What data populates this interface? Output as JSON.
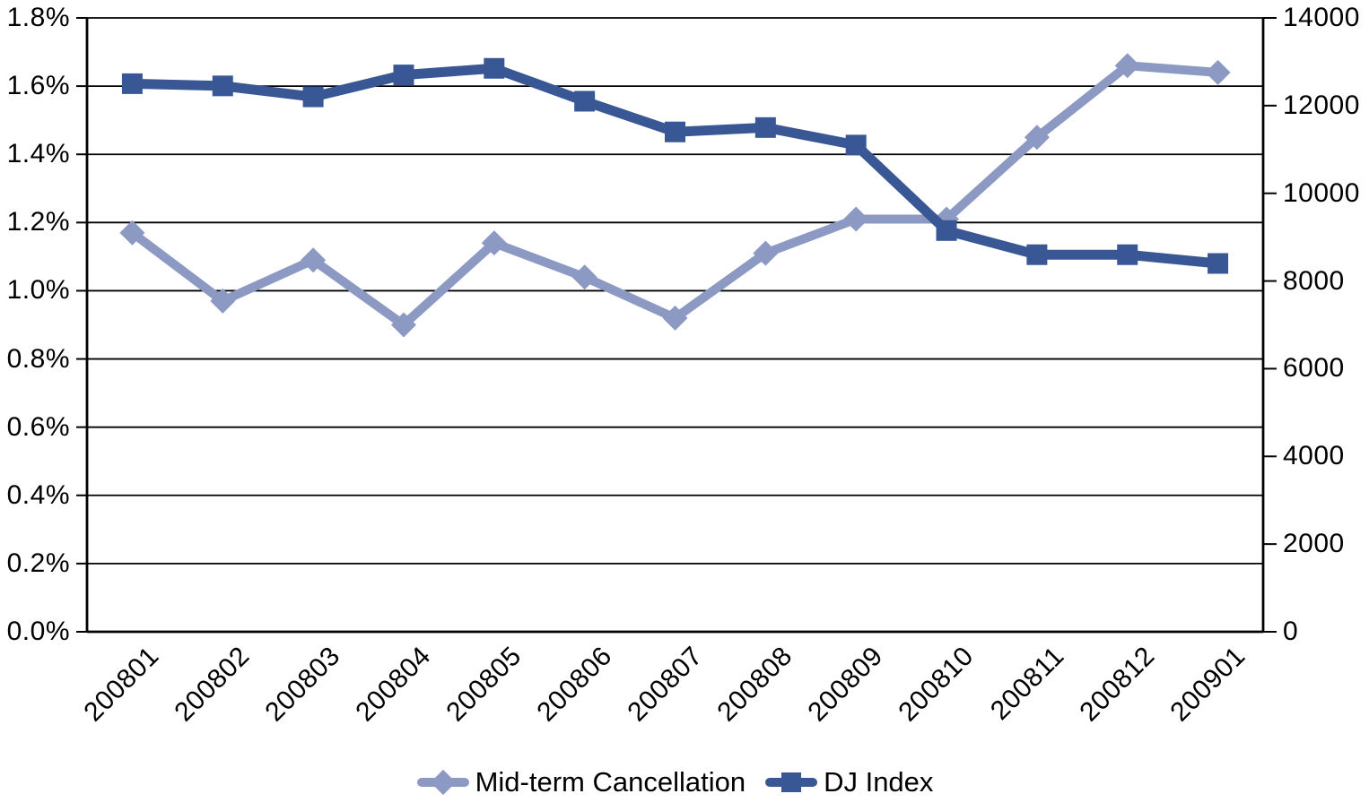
{
  "chart_data": {
    "type": "line",
    "title": "",
    "categories": [
      "200801",
      "200802",
      "200803",
      "200804",
      "200805",
      "200806",
      "200807",
      "200808",
      "200809",
      "200810",
      "200811",
      "200812",
      "200901"
    ],
    "series": [
      {
        "name": "Mid-term Cancellation",
        "axis": "left",
        "marker": "diamond",
        "color": "#8C99C3",
        "unit": "%",
        "values": [
          1.17,
          0.97,
          1.09,
          0.9,
          1.14,
          1.04,
          0.92,
          1.11,
          1.21,
          1.21,
          1.45,
          1.66,
          1.64
        ]
      },
      {
        "name": "DJ Index",
        "axis": "right",
        "marker": "square",
        "color": "#3A5795",
        "unit": "",
        "values": [
          12500,
          12450,
          12200,
          12700,
          12850,
          12100,
          11400,
          11500,
          11100,
          9150,
          8600,
          8600,
          8400
        ]
      }
    ],
    "left_axis": {
      "min": 0,
      "max": 1.8,
      "step": 0.2,
      "format": "percent",
      "tick_labels": [
        "0.0%",
        "0.2%",
        "0.4%",
        "0.6%",
        "0.8%",
        "1.0%",
        "1.2%",
        "1.4%",
        "1.6%",
        "1.8%"
      ]
    },
    "right_axis": {
      "min": 0,
      "max": 14000,
      "step": 2000,
      "format": "number",
      "tick_labels": [
        "0",
        "2000",
        "4000",
        "6000",
        "8000",
        "10000",
        "12000",
        "14000"
      ]
    },
    "grid": "horizontal",
    "legend_position": "bottom"
  },
  "colors": {
    "axis": "#000000",
    "gridline": "#000000",
    "background": "#ffffff",
    "series_light": "#8C99C3",
    "series_dark": "#3A5795"
  }
}
